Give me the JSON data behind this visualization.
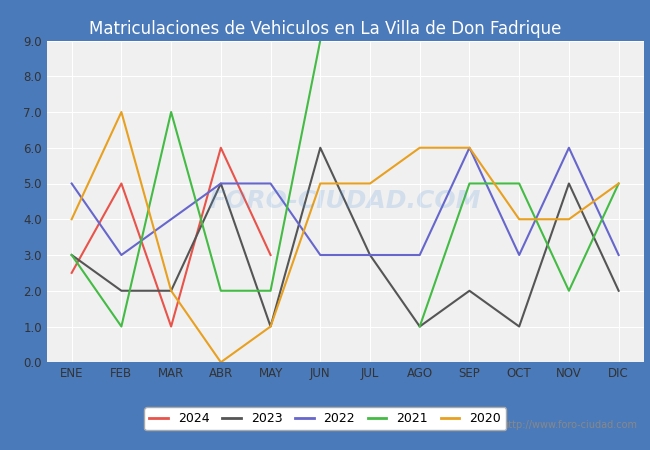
{
  "title": "Matriculaciones de Vehiculos en La Villa de Don Fadrique",
  "months": [
    "ENE",
    "FEB",
    "MAR",
    "ABR",
    "MAY",
    "JUN",
    "JUL",
    "AGO",
    "SEP",
    "OCT",
    "NOV",
    "DIC"
  ],
  "series": {
    "2024": [
      2.5,
      5.0,
      1.0,
      6.0,
      3.0,
      null,
      null,
      null,
      null,
      null,
      null,
      null
    ],
    "2023": [
      3.0,
      2.0,
      2.0,
      5.0,
      1.0,
      6.0,
      3.0,
      1.0,
      2.0,
      1.0,
      5.0,
      2.0
    ],
    "2022": [
      5.0,
      3.0,
      4.0,
      5.0,
      5.0,
      3.0,
      3.0,
      3.0,
      6.0,
      3.0,
      6.0,
      3.0
    ],
    "2021": [
      3.0,
      1.0,
      7.0,
      2.0,
      2.0,
      9.0,
      null,
      1.0,
      5.0,
      5.0,
      2.0,
      5.0
    ],
    "2020": [
      4.0,
      7.0,
      2.0,
      0.0,
      1.0,
      5.0,
      5.0,
      6.0,
      6.0,
      4.0,
      4.0,
      5.0
    ]
  },
  "colors": {
    "2024": "#e8534a",
    "2023": "#555555",
    "2022": "#6666cc",
    "2021": "#44bb44",
    "2020": "#e8a020"
  },
  "ylim": [
    0.0,
    9.0
  ],
  "yticks": [
    0.0,
    1.0,
    2.0,
    3.0,
    4.0,
    5.0,
    6.0,
    7.0,
    8.0,
    9.0
  ],
  "title_bg_color": "#4a7aba",
  "title_text_color": "white",
  "plot_bg_color": "#e8e8e8",
  "plot_inner_bg": "#f0f0f0",
  "grid_color": "white",
  "url_text": "http://www.foro-ciudad.com",
  "legend_years": [
    "2024",
    "2023",
    "2022",
    "2021",
    "2020"
  ],
  "title_fontsize": 12,
  "tick_fontsize": 8.5,
  "legend_fontsize": 9
}
